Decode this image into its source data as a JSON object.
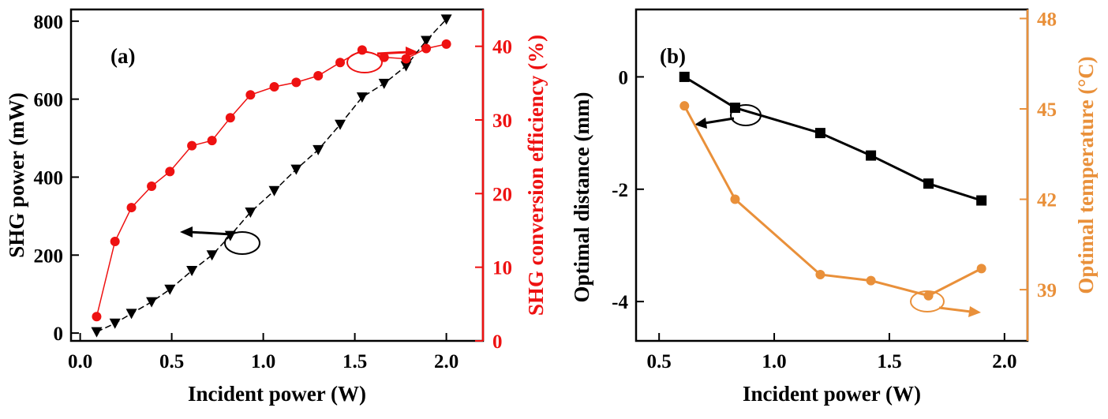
{
  "chart_data": [
    {
      "panel": "(a)",
      "type": "line",
      "xlabel": "Incident power (W)",
      "xlim": [
        -0.05,
        2.2
      ],
      "xticks": [
        0.0,
        0.5,
        1.0,
        1.5,
        2.0
      ],
      "xtick_labels": [
        "0.0",
        "0.5",
        "1.0",
        "1.5",
        "2.0"
      ],
      "left_axis": {
        "label": "SHG power (mW)",
        "lim": [
          -20,
          830
        ],
        "ticks": [
          0,
          200,
          400,
          600,
          800
        ],
        "tick_labels": [
          "0",
          "200",
          "400",
          "600",
          "800"
        ],
        "color": "#000000"
      },
      "right_axis": {
        "label": "SHG conversion efficiency (%)",
        "lim": [
          0,
          45
        ],
        "ticks": [
          0,
          10,
          20,
          30,
          40
        ],
        "tick_labels": [
          "0",
          "10",
          "20",
          "30",
          "40"
        ],
        "color": "#ee1111"
      },
      "series": [
        {
          "name": "SHG power",
          "axis": "left",
          "marker": "triangle-down",
          "line": "dashed",
          "color": "#000000",
          "x": [
            0.09,
            0.19,
            0.28,
            0.39,
            0.49,
            0.61,
            0.72,
            0.82,
            0.93,
            1.06,
            1.18,
            1.3,
            1.42,
            1.54,
            1.66,
            1.78,
            1.89,
            2.0
          ],
          "y": [
            3,
            25,
            50,
            80,
            112,
            160,
            200,
            250,
            310,
            365,
            420,
            470,
            535,
            605,
            640,
            685,
            750,
            805
          ]
        },
        {
          "name": "SHG conversion efficiency",
          "axis": "right",
          "marker": "circle",
          "line": "solid",
          "color": "#ee1111",
          "x": [
            0.09,
            0.19,
            0.28,
            0.39,
            0.49,
            0.61,
            0.72,
            0.82,
            0.93,
            1.06,
            1.18,
            1.3,
            1.42,
            1.54,
            1.66,
            1.78,
            1.89,
            2.0
          ],
          "y": [
            3.3,
            13.5,
            18.1,
            21.0,
            23.0,
            26.5,
            27.2,
            30.3,
            33.4,
            34.5,
            35.1,
            36.0,
            37.8,
            39.5,
            38.5,
            38.3,
            39.7,
            40.3
          ]
        }
      ]
    },
    {
      "panel": "(b)",
      "type": "line",
      "xlabel": "Incident power (W)",
      "xlim": [
        0.4,
        2.1
      ],
      "xticks": [
        0.5,
        1.0,
        1.5,
        2.0
      ],
      "xtick_labels": [
        "0.5",
        "1.0",
        "1.5",
        "2.0"
      ],
      "left_axis": {
        "label": "Optimal distance (mm)",
        "lim": [
          -4.7,
          1.2
        ],
        "ticks": [
          -4,
          -2,
          0
        ],
        "tick_labels": [
          "-4",
          "-2",
          "0"
        ],
        "color": "#000000"
      },
      "right_axis": {
        "label": "Optimal temperature (°C)",
        "lim": [
          37.3,
          48.3
        ],
        "ticks": [
          39,
          42,
          45,
          48
        ],
        "tick_labels": [
          "39",
          "42",
          "45",
          "48"
        ],
        "color": "#e9903a"
      },
      "series": [
        {
          "name": "Optimal distance",
          "axis": "left",
          "marker": "square",
          "line": "solid",
          "color": "#000000",
          "x": [
            0.61,
            0.83,
            1.2,
            1.42,
            1.67,
            1.9
          ],
          "y": [
            0.0,
            -0.55,
            -1.0,
            -1.4,
            -1.9,
            -2.2
          ]
        },
        {
          "name": "Optimal temperature",
          "axis": "right",
          "marker": "circle",
          "line": "solid",
          "color": "#e9903a",
          "x": [
            0.61,
            0.83,
            1.2,
            1.42,
            1.67,
            1.9
          ],
          "y": [
            45.1,
            42.0,
            39.5,
            39.3,
            38.8,
            39.7
          ]
        }
      ]
    }
  ]
}
